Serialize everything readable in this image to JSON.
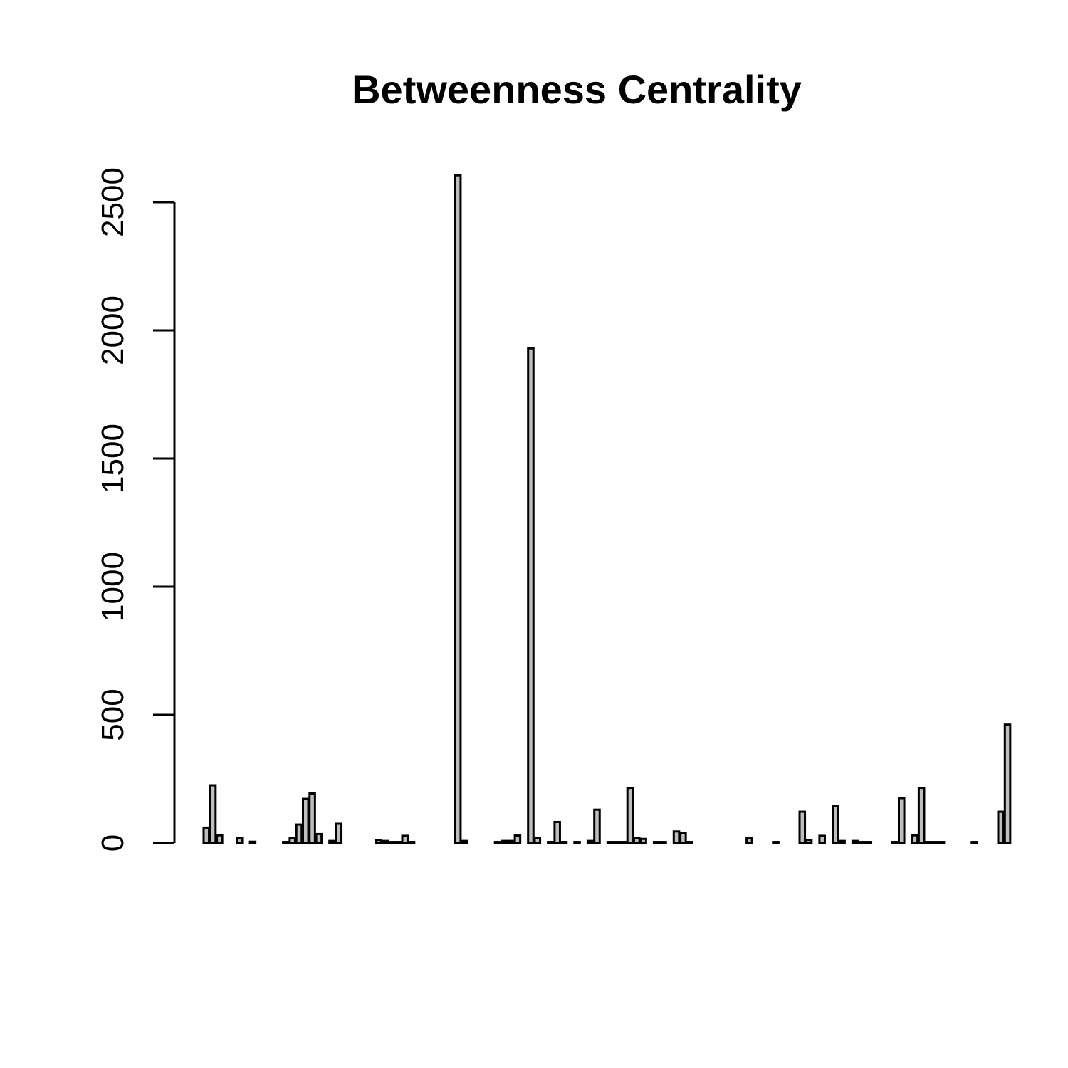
{
  "chart_data": {
    "type": "bar",
    "title": "Betweenness Centrality",
    "xlabel": "",
    "ylabel": "",
    "ylim": [
      0,
      2600
    ],
    "yticks": [
      0,
      500,
      1000,
      1500,
      2000,
      2500
    ],
    "bar_fill": "#bebebe",
    "bar_stroke": "#000000",
    "values": [
      60,
      225,
      30,
      0,
      0,
      18,
      0,
      5,
      0,
      0,
      0,
      0,
      4,
      18,
      72,
      172,
      193,
      35,
      0,
      8,
      75,
      0,
      0,
      0,
      0,
      0,
      12,
      8,
      4,
      4,
      28,
      4,
      0,
      0,
      0,
      0,
      0,
      0,
      2605,
      8,
      0,
      0,
      0,
      0,
      4,
      8,
      8,
      29,
      0,
      1930,
      20,
      0,
      4,
      82,
      4,
      0,
      4,
      0,
      8,
      130,
      0,
      4,
      4,
      4,
      215,
      20,
      16,
      0,
      4,
      4,
      0,
      45,
      40,
      4,
      0,
      0,
      0,
      0,
      0,
      0,
      0,
      0,
      18,
      0,
      0,
      0,
      4,
      0,
      0,
      0,
      122,
      12,
      0,
      28,
      0,
      145,
      8,
      0,
      8,
      4,
      4,
      0,
      0,
      0,
      4,
      175,
      0,
      30,
      215,
      4,
      4,
      4,
      0,
      0,
      0,
      0,
      4,
      0,
      0,
      0,
      122,
      462
    ]
  }
}
